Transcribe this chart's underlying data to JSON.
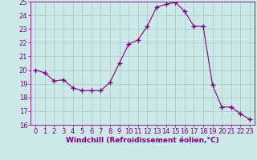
{
  "x": [
    0,
    1,
    2,
    3,
    4,
    5,
    6,
    7,
    8,
    9,
    10,
    11,
    12,
    13,
    14,
    15,
    16,
    17,
    18,
    19,
    20,
    21,
    22,
    23
  ],
  "y": [
    20.0,
    19.8,
    19.2,
    19.3,
    18.7,
    18.5,
    18.5,
    18.5,
    19.1,
    20.5,
    21.9,
    22.2,
    23.2,
    24.6,
    24.8,
    24.95,
    24.3,
    23.2,
    23.2,
    18.9,
    17.3,
    17.3,
    16.8,
    16.4
  ],
  "line_color": "#800080",
  "marker": "D",
  "marker_size": 2.0,
  "bg_color": "#cce8e8",
  "grid_color": "#aacccc",
  "xlabel": "Windchill (Refroidissement éolien,°C)",
  "xlabel_fontsize": 6.5,
  "tick_fontsize": 6.0,
  "ylim": [
    16,
    25
  ],
  "xlim": [
    -0.5,
    23.5
  ],
  "yticks": [
    16,
    17,
    18,
    19,
    20,
    21,
    22,
    23,
    24,
    25
  ],
  "xticks": [
    0,
    1,
    2,
    3,
    4,
    5,
    6,
    7,
    8,
    9,
    10,
    11,
    12,
    13,
    14,
    15,
    16,
    17,
    18,
    19,
    20,
    21,
    22,
    23
  ]
}
